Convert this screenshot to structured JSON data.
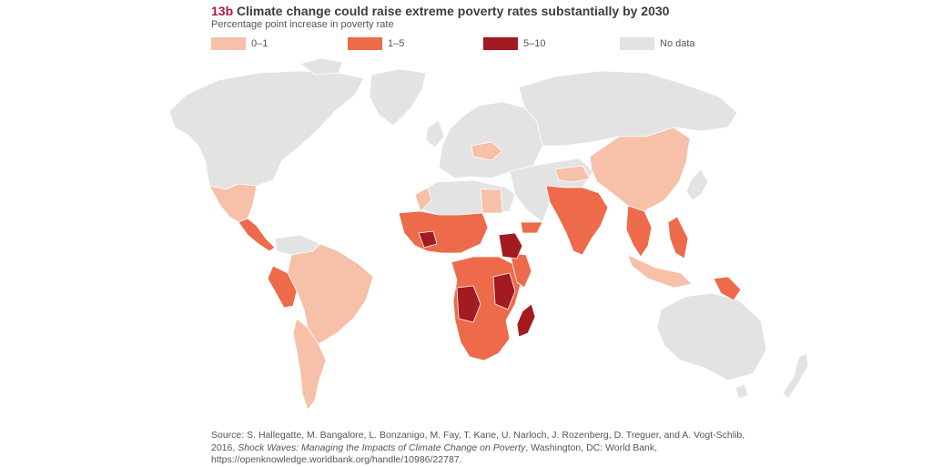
{
  "header": {
    "figure_number": "13b",
    "title": "Climate change could raise extreme poverty rates substantially by 2030",
    "subtitle": "Percentage point increase in poverty rate"
  },
  "legend": {
    "items": [
      {
        "label": "0–1",
        "color": "#f7c0a8"
      },
      {
        "label": "1–5",
        "color": "#ed6a4a"
      },
      {
        "label": "5–10",
        "color": "#a31a20"
      },
      {
        "label": "No data",
        "color": "#e3e3e3"
      }
    ]
  },
  "map": {
    "nodata_color": "#e3e3e3",
    "highlighted_regions": [
      {
        "region": "Mexico",
        "category": "0–1"
      },
      {
        "region": "Central America",
        "category": "1–5"
      },
      {
        "region": "Peru",
        "category": "1–5"
      },
      {
        "region": "Brazil",
        "category": "0–1"
      },
      {
        "region": "Southern South America",
        "category": "0–1"
      },
      {
        "region": "West Africa",
        "category": "1–5"
      },
      {
        "region": "Burkina Faso",
        "category": "5–10"
      },
      {
        "region": "Ethiopia",
        "category": "5–10"
      },
      {
        "region": "Angola",
        "category": "5–10"
      },
      {
        "region": "Tanzania",
        "category": "5–10"
      },
      {
        "region": "Madagascar",
        "category": "5–10"
      },
      {
        "region": "Southern Africa",
        "category": "1–5"
      },
      {
        "region": "India",
        "category": "1–5"
      },
      {
        "region": "China",
        "category": "0–1"
      },
      {
        "region": "Southeast Asia",
        "category": "1–5"
      },
      {
        "region": "Papua New Guinea",
        "category": "1–5"
      }
    ]
  },
  "source": {
    "prefix": "Source: S. Hallegatte, M. Bangalore, L. Bonzanigo, M. Fay, T. Kane, U. Narloch, J. Rozenberg, D. Treguer, and A. Vogt-Schlib, 2016, ",
    "book_title": "Shock Waves: Managing the Impacts of Climate Change on Poverty",
    "suffix": ", Washington, DC: World Bank, https://openknowledge.worldbank.org/handle/10986/22787."
  }
}
